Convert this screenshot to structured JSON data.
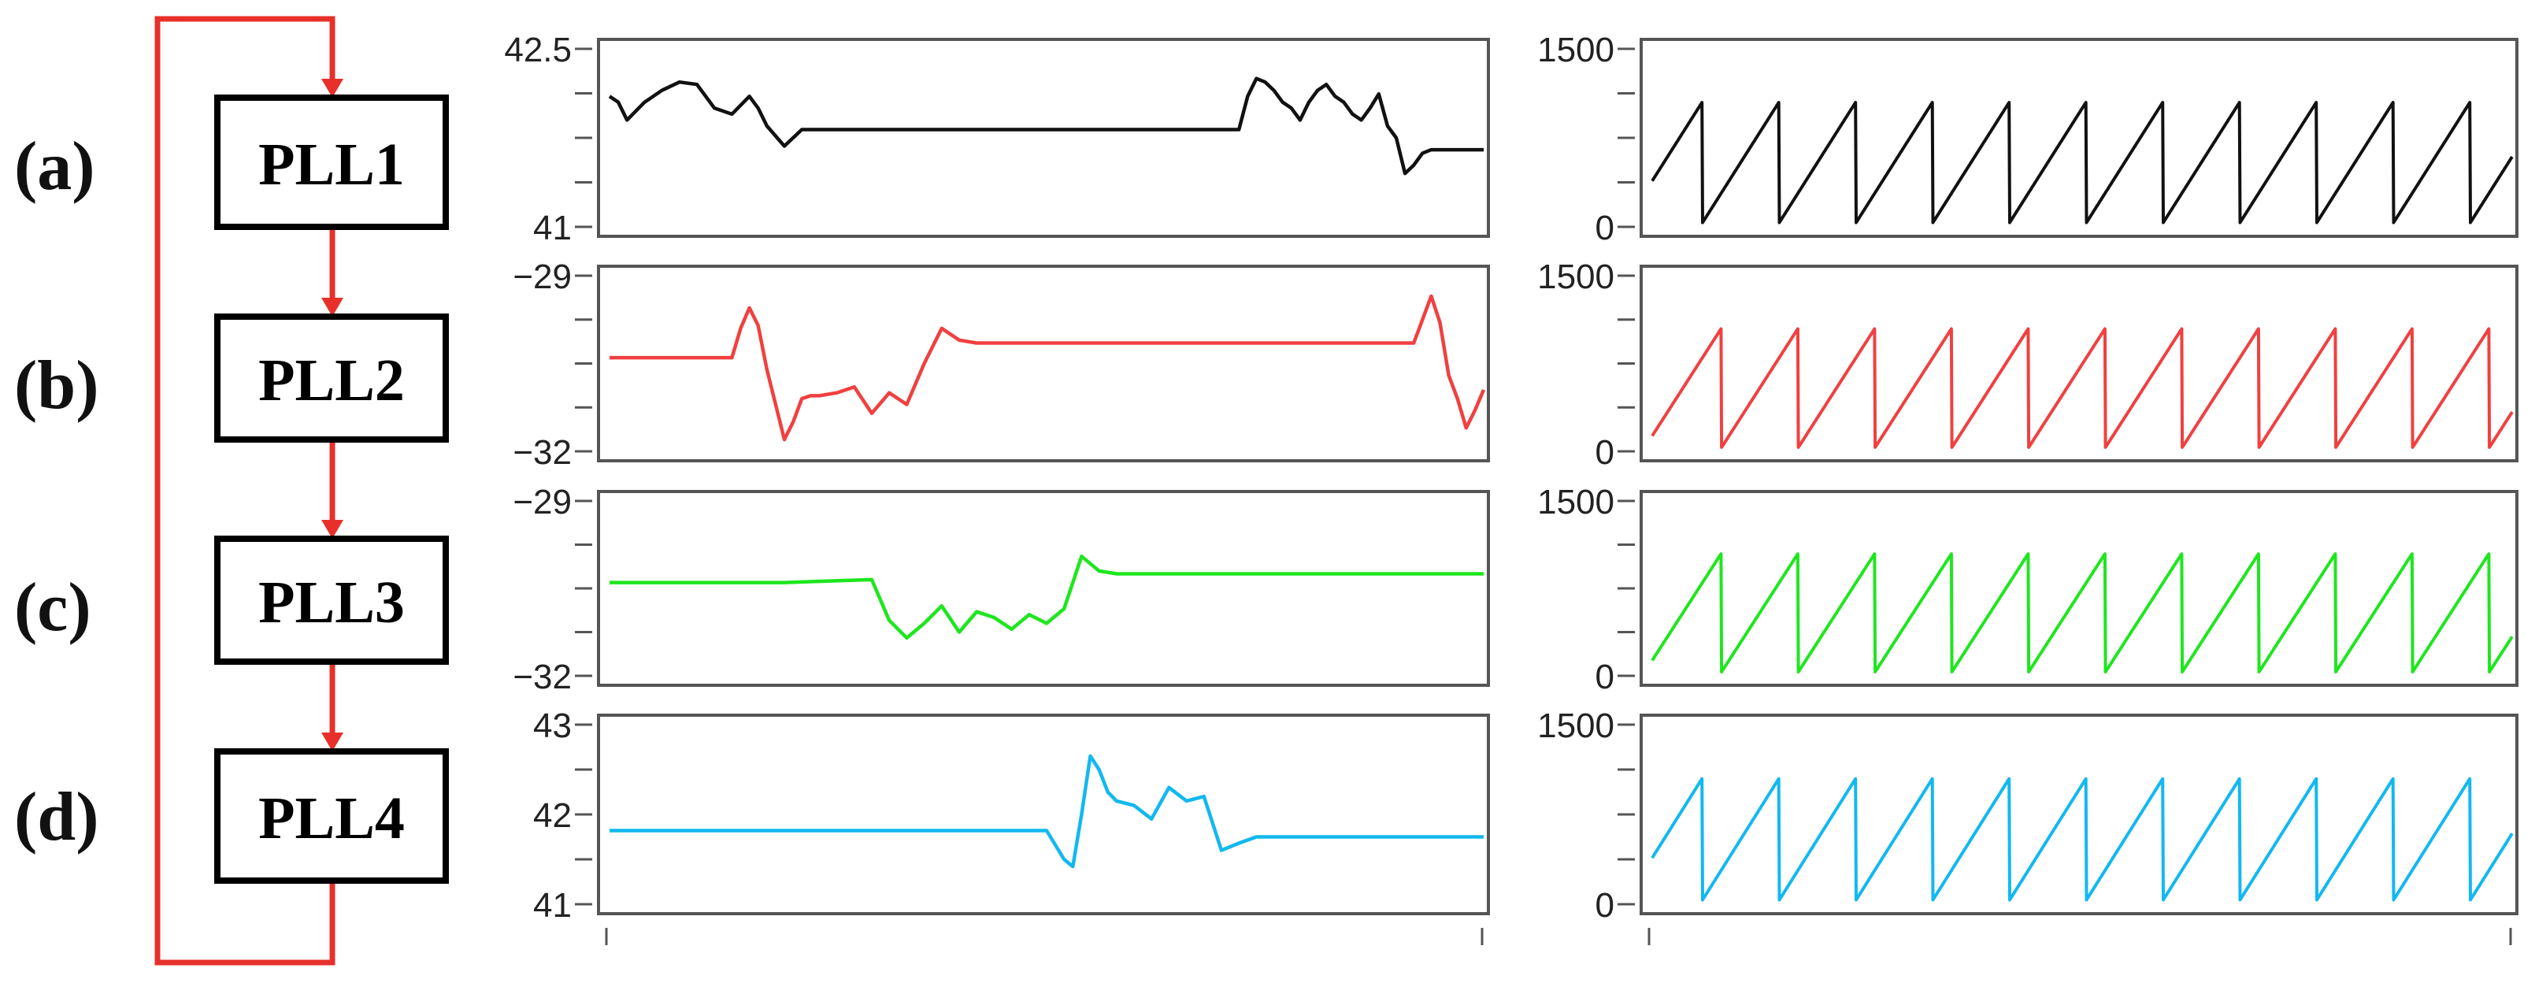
{
  "diagram": {
    "blocks": [
      "PLL1",
      "PLL2",
      "PLL3",
      "PLL4"
    ],
    "row_labels": [
      "(a)",
      "(b)",
      "(c)",
      "(d)"
    ],
    "arrow_color": "#e8302a"
  },
  "chart_data": [
    {
      "type": "line",
      "panel": "a-left",
      "color": "#111111",
      "ylim": [
        41,
        42.5
      ],
      "ytick_labels": [
        "42.5",
        "41"
      ],
      "xlim": [
        0,
        100
      ],
      "x": [
        0,
        1,
        2,
        4,
        6,
        8,
        10,
        12,
        14,
        16,
        17,
        18,
        20,
        22,
        24,
        26,
        28,
        30,
        32,
        34,
        36,
        38,
        40,
        42,
        44,
        46,
        48,
        50,
        52,
        54,
        56,
        58,
        60,
        62,
        64,
        66,
        68,
        70,
        72,
        73,
        74,
        75,
        76,
        77,
        78,
        79,
        80,
        81,
        82,
        83,
        84,
        85,
        86,
        87,
        88,
        89,
        90,
        91,
        92,
        93,
        94,
        95,
        96,
        97,
        98,
        99,
        100
      ],
      "y": [
        42.1,
        42.05,
        41.9,
        42.05,
        42.15,
        42.22,
        42.2,
        42.0,
        41.95,
        42.1,
        42.0,
        41.85,
        41.68,
        41.82,
        41.82,
        41.82,
        41.82,
        41.82,
        41.82,
        41.82,
        41.82,
        41.82,
        41.82,
        41.82,
        41.82,
        41.82,
        41.82,
        41.82,
        41.82,
        41.82,
        41.82,
        41.82,
        41.82,
        41.82,
        41.82,
        41.82,
        41.82,
        41.82,
        41.82,
        42.1,
        42.25,
        42.22,
        42.15,
        42.05,
        42.0,
        41.9,
        42.05,
        42.15,
        42.2,
        42.1,
        42.05,
        41.95,
        41.9,
        42.0,
        42.12,
        41.85,
        41.75,
        41.45,
        41.52,
        41.62,
        41.65,
        41.65,
        41.65,
        41.65,
        41.65,
        41.65,
        41.65
      ]
    },
    {
      "type": "line",
      "panel": "b-left",
      "color": "#f04040",
      "ylim": [
        -32,
        -29
      ],
      "ytick_labels": [
        "−29",
        "−32"
      ],
      "xlim": [
        0,
        100
      ],
      "x": [
        0,
        8,
        14,
        15,
        16,
        17,
        18,
        19,
        20,
        21,
        22,
        23,
        24,
        26,
        28,
        30,
        32,
        34,
        36,
        38,
        40,
        42,
        44,
        46,
        48,
        50,
        52,
        54,
        56,
        58,
        60,
        62,
        64,
        66,
        68,
        70,
        72,
        74,
        76,
        78,
        80,
        82,
        84,
        86,
        88,
        90,
        92,
        93,
        94,
        95,
        96,
        97,
        98,
        99,
        100
      ],
      "y": [
        -30.4,
        -30.4,
        -30.4,
        -29.9,
        -29.55,
        -29.85,
        -30.6,
        -31.2,
        -31.8,
        -31.5,
        -31.1,
        -31.05,
        -31.05,
        -31.0,
        -30.9,
        -31.35,
        -31.0,
        -31.2,
        -30.5,
        -29.9,
        -30.1,
        -30.15,
        -30.15,
        -30.15,
        -30.15,
        -30.15,
        -30.15,
        -30.15,
        -30.15,
        -30.15,
        -30.15,
        -30.15,
        -30.15,
        -30.15,
        -30.15,
        -30.15,
        -30.15,
        -30.15,
        -30.15,
        -30.15,
        -30.15,
        -30.15,
        -30.15,
        -30.15,
        -30.15,
        -30.15,
        -30.15,
        -29.75,
        -29.35,
        -29.8,
        -30.7,
        -31.1,
        -31.6,
        -31.3,
        -30.95
      ]
    },
    {
      "type": "line",
      "panel": "c-left",
      "color": "#1ee61e",
      "ylim": [
        -32,
        -29
      ],
      "ytick_labels": [
        "−29",
        "−32"
      ],
      "xlim": [
        0,
        100
      ],
      "x": [
        0,
        10,
        20,
        30,
        32,
        34,
        36,
        38,
        40,
        42,
        44,
        46,
        48,
        50,
        52,
        54,
        56,
        58,
        60,
        62,
        64,
        66,
        68,
        70,
        80,
        90,
        100
      ],
      "y": [
        -30.4,
        -30.4,
        -30.4,
        -30.35,
        -31.05,
        -31.35,
        -31.1,
        -30.8,
        -31.25,
        -30.9,
        -31.0,
        -31.2,
        -30.95,
        -31.1,
        -30.85,
        -29.95,
        -30.2,
        -30.25,
        -30.25,
        -30.25,
        -30.25,
        -30.25,
        -30.25,
        -30.25,
        -30.25,
        -30.25,
        -30.25
      ]
    },
    {
      "type": "line",
      "panel": "d-left",
      "color": "#12b8f0",
      "ylim": [
        41,
        43
      ],
      "ytick_labels": [
        "43",
        "42",
        "41"
      ],
      "xlim": [
        0,
        100
      ],
      "x": [
        0,
        10,
        20,
        30,
        40,
        50,
        52,
        53,
        54,
        55,
        56,
        57,
        58,
        60,
        62,
        64,
        66,
        68,
        70,
        72,
        74,
        76,
        78,
        80,
        90,
        100
      ],
      "y": [
        41.82,
        41.82,
        41.82,
        41.82,
        41.82,
        41.82,
        41.5,
        41.42,
        42.0,
        42.65,
        42.5,
        42.25,
        42.15,
        42.1,
        41.95,
        42.3,
        42.15,
        42.2,
        41.6,
        41.68,
        41.75,
        41.75,
        41.75,
        41.75,
        41.75,
        41.75
      ]
    },
    {
      "type": "line",
      "panel": "a-right",
      "shape": "sawtooth",
      "color": "#111111",
      "ylim": [
        0,
        1500
      ],
      "ytick_labels": [
        "1500",
        "0"
      ],
      "xlim": [
        0,
        100
      ],
      "periods": 11.2,
      "phase": 0.35,
      "peak": 1050,
      "trough": 30
    },
    {
      "type": "line",
      "panel": "b-right",
      "shape": "sawtooth",
      "color": "#f04040",
      "ylim": [
        0,
        1500
      ],
      "ytick_labels": [
        "1500",
        "0"
      ],
      "xlim": [
        0,
        100
      ],
      "periods": 11.2,
      "phase": 0.1,
      "peak": 1050,
      "trough": 30
    },
    {
      "type": "line",
      "panel": "c-right",
      "shape": "sawtooth",
      "color": "#1ee61e",
      "ylim": [
        0,
        1500
      ],
      "ytick_labels": [
        "1500",
        "0"
      ],
      "xlim": [
        0,
        100
      ],
      "periods": 11.2,
      "phase": 0.1,
      "peak": 1050,
      "trough": 30
    },
    {
      "type": "line",
      "panel": "d-right",
      "shape": "sawtooth",
      "color": "#12b8f0",
      "ylim": [
        0,
        1500
      ],
      "ytick_labels": [
        "1500",
        "0"
      ],
      "xlim": [
        0,
        100
      ],
      "periods": 11.2,
      "phase": 0.35,
      "peak": 1050,
      "trough": 30
    }
  ]
}
